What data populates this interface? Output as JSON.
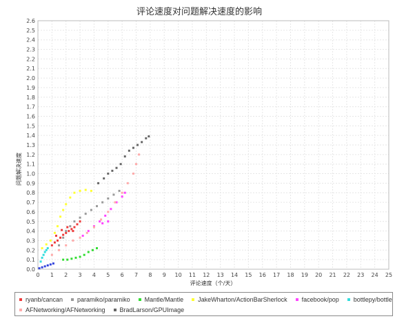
{
  "chart_data": {
    "type": "scatter",
    "title": "评论速度对问题解决速度的影响",
    "xlabel": "评论速度（个/天）",
    "ylabel": "问题解决速度",
    "xlim": [
      0,
      25
    ],
    "ylim": [
      0,
      2.6
    ],
    "grid": true,
    "legend": "bottom",
    "x_ticks": [
      "0",
      "1",
      "2",
      "3",
      "4",
      "5",
      "6",
      "7",
      "8",
      "9",
      "10",
      "11",
      "12",
      "13",
      "14",
      "15",
      "16",
      "17",
      "18",
      "19",
      "20",
      "21",
      "22",
      "23",
      "24",
      "25"
    ],
    "y_ticks": [
      "0.0",
      "0.1",
      "0.2",
      "0.3",
      "0.4",
      "0.5",
      "0.6",
      "0.7",
      "0.8",
      "0.9",
      "1.0",
      "1.1",
      "1.2",
      "1.3",
      "1.4",
      "1.5",
      "1.6",
      "1.7",
      "1.8",
      "1.9",
      "2.0",
      "2.1",
      "2.2",
      "2.3",
      "2.4",
      "2.5",
      "2.6"
    ],
    "series": [
      {
        "name": "ryanb/cancan",
        "color": "#ee3b3b",
        "points": [
          [
            1.0,
            0.25
          ],
          [
            1.2,
            0.28
          ],
          [
            1.4,
            0.3
          ],
          [
            1.6,
            0.33
          ],
          [
            1.8,
            0.36
          ],
          [
            2.0,
            0.38
          ],
          [
            2.2,
            0.4
          ],
          [
            2.4,
            0.42
          ],
          [
            2.6,
            0.44
          ],
          [
            2.8,
            0.47
          ],
          [
            3.0,
            0.5
          ],
          [
            1.3,
            0.35
          ],
          [
            1.7,
            0.41
          ],
          [
            2.1,
            0.44
          ],
          [
            2.5,
            0.4
          ]
        ]
      },
      {
        "name": "paramiko/paramiko",
        "color": "#999999",
        "points": [
          [
            1.5,
            0.25
          ],
          [
            1.8,
            0.33
          ],
          [
            2.0,
            0.4
          ],
          [
            2.3,
            0.45
          ],
          [
            2.6,
            0.5
          ],
          [
            3.0,
            0.54
          ],
          [
            3.4,
            0.58
          ],
          [
            3.8,
            0.62
          ],
          [
            4.2,
            0.66
          ],
          [
            4.6,
            0.7
          ],
          [
            5.0,
            0.74
          ],
          [
            5.4,
            0.78
          ],
          [
            5.8,
            0.82
          ]
        ]
      },
      {
        "name": "Mantle/Mantle",
        "color": "#33dd33",
        "points": [
          [
            1.8,
            0.1
          ],
          [
            2.1,
            0.1
          ],
          [
            2.4,
            0.11
          ],
          [
            2.7,
            0.12
          ],
          [
            3.0,
            0.13
          ],
          [
            3.3,
            0.15
          ],
          [
            3.6,
            0.18
          ],
          [
            3.9,
            0.2
          ],
          [
            4.2,
            0.22
          ]
        ]
      },
      {
        "name": "JakeWharton/ActionBarSherlock",
        "color": "#ffff33",
        "points": [
          [
            0.3,
            0.22
          ],
          [
            0.6,
            0.26
          ],
          [
            0.9,
            0.3
          ],
          [
            1.2,
            0.38
          ],
          [
            1.4,
            0.45
          ],
          [
            1.6,
            0.55
          ],
          [
            1.8,
            0.62
          ],
          [
            2.0,
            0.68
          ],
          [
            2.3,
            0.75
          ],
          [
            2.6,
            0.8
          ],
          [
            3.0,
            0.82
          ],
          [
            3.4,
            0.83
          ],
          [
            3.8,
            0.82
          ]
        ]
      },
      {
        "name": "facebook/pop",
        "color": "#ff44ff",
        "points": [
          [
            3.2,
            0.35
          ],
          [
            3.6,
            0.4
          ],
          [
            4.0,
            0.45
          ],
          [
            4.4,
            0.5
          ],
          [
            4.8,
            0.56
          ],
          [
            5.2,
            0.63
          ],
          [
            5.6,
            0.7
          ],
          [
            6.0,
            0.76
          ],
          [
            6.2,
            0.8
          ],
          [
            5.0,
            0.5
          ],
          [
            4.6,
            0.48
          ]
        ]
      },
      {
        "name": "bottlepy/bottle",
        "color": "#33dddd",
        "points": [
          [
            0.2,
            0.08
          ],
          [
            0.3,
            0.12
          ],
          [
            0.4,
            0.15
          ],
          [
            0.5,
            0.18
          ],
          [
            0.6,
            0.2
          ],
          [
            0.7,
            0.22
          ]
        ]
      },
      {
        "name": "AFNetworking/AFNetworking",
        "color": "#ffaaaa",
        "points": [
          [
            1.0,
            0.15
          ],
          [
            1.5,
            0.2
          ],
          [
            2.0,
            0.25
          ],
          [
            2.5,
            0.3
          ],
          [
            3.0,
            0.33
          ],
          [
            3.5,
            0.38
          ],
          [
            4.0,
            0.44
          ],
          [
            4.5,
            0.52
          ],
          [
            5.0,
            0.6
          ],
          [
            5.5,
            0.7
          ],
          [
            6.0,
            0.8
          ],
          [
            6.4,
            0.9
          ],
          [
            6.8,
            1.0
          ],
          [
            7.0,
            1.1
          ],
          [
            7.2,
            1.2
          ]
        ]
      },
      {
        "name": "BradLarson/GPUImage",
        "color": "#666666",
        "points": [
          [
            4.3,
            0.9
          ],
          [
            4.7,
            0.95
          ],
          [
            5.0,
            1.0
          ],
          [
            5.3,
            1.03
          ],
          [
            5.6,
            1.06
          ],
          [
            5.9,
            1.1
          ],
          [
            6.2,
            1.18
          ],
          [
            6.5,
            1.24
          ],
          [
            6.8,
            1.27
          ],
          [
            7.1,
            1.3
          ],
          [
            7.4,
            1.33
          ],
          [
            7.7,
            1.37
          ],
          [
            7.9,
            1.39
          ]
        ]
      },
      {
        "name": "",
        "color": "#3344dd",
        "points": [
          [
            0.1,
            0.01
          ],
          [
            0.3,
            0.02
          ],
          [
            0.5,
            0.03
          ],
          [
            0.7,
            0.04
          ],
          [
            0.9,
            0.05
          ],
          [
            1.1,
            0.06
          ]
        ]
      }
    ]
  }
}
